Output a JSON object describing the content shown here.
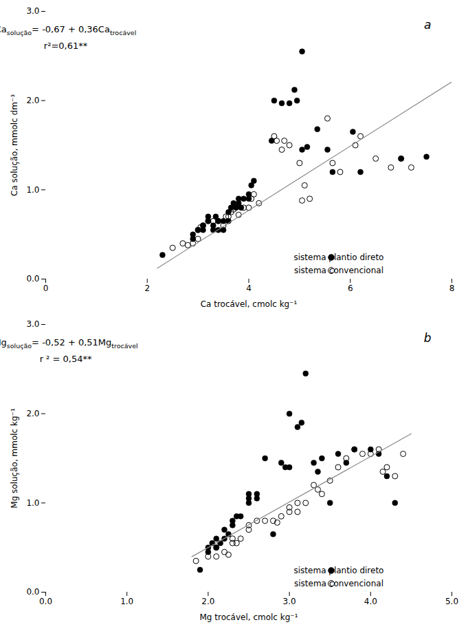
{
  "chart_data": [
    {
      "type": "scatter",
      "title": "a",
      "xlabel": "Ca trocável, cmolc kg⁻¹",
      "ylabel": "Ca solução, mmolc dm⁻³",
      "xlim": [
        0,
        8
      ],
      "ylim": [
        0,
        3
      ],
      "xticks": [
        0,
        2,
        4,
        6,
        8
      ],
      "yticks": [
        0,
        1,
        2,
        3
      ],
      "grid": false,
      "legend": "lower right",
      "annotations": [
        [
          "Ca",
          "solução",
          "= -0,67 + 0,36Ca",
          "trocável"
        ],
        "r²=0,61**"
      ],
      "series": [
        {
          "name": "sistema plantio direto",
          "color": "black",
          "marker": "filled_circle",
          "x": [
            2.3,
            2.9,
            2.9,
            3.0,
            3.1,
            3.1,
            3.2,
            3.2,
            3.3,
            3.3,
            3.35,
            3.4,
            3.4,
            3.5,
            3.5,
            3.6,
            3.6,
            3.65,
            3.7,
            3.75,
            3.8,
            3.8,
            3.85,
            3.9,
            4.0,
            4.0,
            4.05,
            4.1,
            4.45,
            4.5,
            4.65,
            4.8,
            4.9,
            4.95,
            5.05,
            5.05,
            5.15,
            5.35,
            5.55,
            5.65,
            6.05,
            6.2,
            7.0,
            7.5
          ],
          "values": [
            0.27,
            0.45,
            0.5,
            0.55,
            0.55,
            0.6,
            0.65,
            0.7,
            0.55,
            0.6,
            0.7,
            0.55,
            0.65,
            0.55,
            0.65,
            0.65,
            0.75,
            0.8,
            0.85,
            0.8,
            0.85,
            0.9,
            0.8,
            0.9,
            0.9,
            0.95,
            1.05,
            1.1,
            1.55,
            2.0,
            1.97,
            1.97,
            2.12,
            2.0,
            2.55,
            1.45,
            1.48,
            1.68,
            1.45,
            1.2,
            1.65,
            1.2,
            1.35,
            1.37
          ]
        },
        {
          "name": "sistema convencional",
          "color": "black",
          "marker": "open_circle",
          "x": [
            2.5,
            2.7,
            2.8,
            2.9,
            3.0,
            3.0,
            3.05,
            3.1,
            3.2,
            3.3,
            3.4,
            3.5,
            3.55,
            3.6,
            3.65,
            3.7,
            3.8,
            3.9,
            4.0,
            4.05,
            4.1,
            4.2,
            4.5,
            4.55,
            4.65,
            4.7,
            4.8,
            5.0,
            5.05,
            5.1,
            5.2,
            5.55,
            5.65,
            5.8,
            6.1,
            6.2,
            6.5,
            6.8,
            7.0,
            7.2
          ],
          "values": [
            0.35,
            0.4,
            0.38,
            0.4,
            0.45,
            0.55,
            0.58,
            0.6,
            0.65,
            0.65,
            0.65,
            0.6,
            0.7,
            0.7,
            0.75,
            0.78,
            0.72,
            0.8,
            0.8,
            0.9,
            0.95,
            0.85,
            1.6,
            1.55,
            1.45,
            1.55,
            1.5,
            1.3,
            0.88,
            1.05,
            0.9,
            1.8,
            1.3,
            1.2,
            1.5,
            1.6,
            1.35,
            1.25,
            1.35,
            1.25
          ]
        },
        {
          "type": "line",
          "color": "#888888",
          "x": [
            2.2,
            8.0
          ],
          "values": [
            0.122,
            2.21
          ]
        }
      ]
    },
    {
      "type": "scatter",
      "title": "b",
      "xlabel": "Mg trocável, cmolc kg⁻¹",
      "ylabel": "Mg solução, mmolc kg⁻¹",
      "xlim": [
        0,
        5
      ],
      "ylim": [
        0,
        3
      ],
      "xticks": [
        0,
        1,
        2,
        3,
        4,
        5
      ],
      "yticks": [
        0,
        1,
        2,
        3
      ],
      "grid": false,
      "legend": "lower right",
      "annotations": [
        [
          "Mg",
          "solução",
          "= -0,52 + 0,51Mg",
          "trocável"
        ],
        "r ² = 0,54**"
      ],
      "series": [
        {
          "name": "sistema plantio direto",
          "color": "black",
          "marker": "filled_circle",
          "x": [
            1.9,
            2.0,
            2.0,
            2.05,
            2.1,
            2.1,
            2.15,
            2.2,
            2.2,
            2.25,
            2.3,
            2.3,
            2.35,
            2.4,
            2.5,
            2.5,
            2.5,
            2.6,
            2.6,
            2.7,
            2.8,
            2.9,
            2.95,
            3.0,
            3.0,
            3.1,
            3.15,
            3.2,
            3.3,
            3.35,
            3.4,
            3.5,
            3.6,
            3.7,
            3.8,
            4.0,
            4.1,
            4.2,
            4.3
          ],
          "values": [
            0.25,
            0.45,
            0.5,
            0.55,
            0.5,
            0.6,
            0.55,
            0.6,
            0.7,
            0.65,
            0.75,
            0.8,
            0.85,
            0.85,
            1.0,
            1.05,
            1.1,
            1.05,
            1.1,
            1.5,
            0.65,
            1.45,
            1.4,
            1.4,
            2.0,
            1.85,
            1.9,
            2.45,
            1.45,
            1.35,
            1.5,
            1.0,
            1.55,
            1.45,
            1.6,
            1.6,
            1.55,
            1.3,
            1.0
          ]
        },
        {
          "name": "sistema convencional",
          "color": "black",
          "marker": "open_circle",
          "x": [
            1.85,
            2.0,
            2.1,
            2.1,
            2.2,
            2.25,
            2.3,
            2.3,
            2.35,
            2.4,
            2.5,
            2.5,
            2.6,
            2.7,
            2.8,
            2.85,
            2.9,
            3.0,
            3.0,
            3.1,
            3.1,
            3.2,
            3.3,
            3.35,
            3.4,
            3.5,
            3.6,
            3.7,
            3.8,
            3.9,
            4.0,
            4.1,
            4.15,
            4.2,
            4.3,
            4.4
          ],
          "values": [
            0.35,
            0.4,
            0.4,
            0.5,
            0.45,
            0.42,
            0.55,
            0.6,
            0.55,
            0.6,
            0.7,
            0.75,
            0.8,
            0.8,
            0.8,
            0.78,
            0.85,
            0.9,
            0.95,
            0.9,
            1.0,
            1.0,
            1.2,
            1.15,
            1.1,
            1.25,
            1.4,
            1.5,
            1.6,
            1.55,
            1.55,
            1.6,
            1.35,
            1.4,
            1.3,
            1.55
          ]
        },
        {
          "type": "line",
          "color": "#888888",
          "x": [
            1.8,
            4.5
          ],
          "values": [
            0.398,
            1.775
          ]
        }
      ]
    }
  ]
}
